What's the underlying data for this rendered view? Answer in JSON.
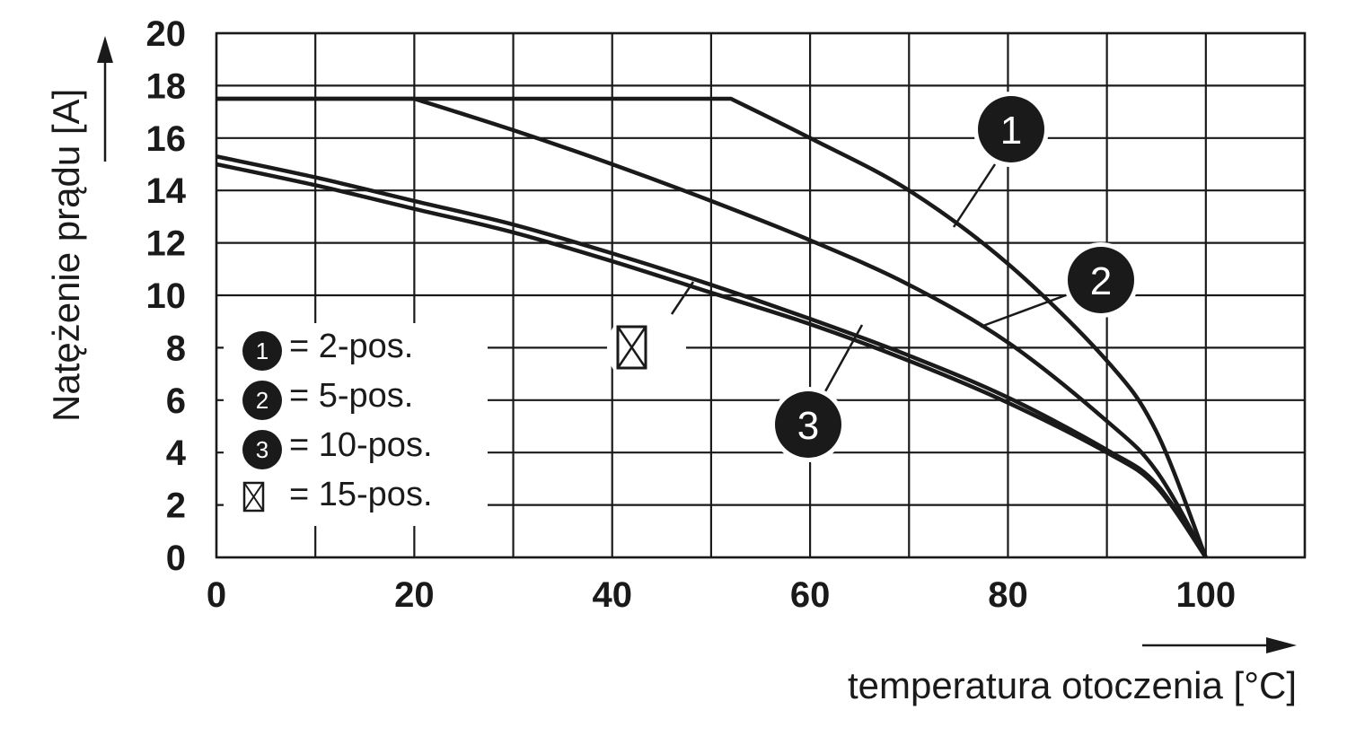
{
  "chart_data": {
    "type": "line",
    "xlabel": "temperatura otoczenia [°C]",
    "ylabel": "Natężenie prądu [A]",
    "xlim": [
      0,
      110
    ],
    "ylim": [
      0,
      20
    ],
    "x_ticks": [
      "0",
      "20",
      "40",
      "60",
      "80",
      "100"
    ],
    "y_ticks": [
      "0",
      "2",
      "4",
      "6",
      "8",
      "10",
      "12",
      "14",
      "16",
      "18",
      "20"
    ],
    "grid": true,
    "legend_position": "bottom-left",
    "series": [
      {
        "marker": "1",
        "x": [
          0,
          52,
          60,
          70,
          80,
          90,
          95,
          100
        ],
        "y": [
          17.5,
          17.5,
          16.0,
          14.0,
          11.2,
          7.5,
          4.8,
          0
        ]
      },
      {
        "marker": "2",
        "x": [
          0,
          20,
          30,
          40,
          50,
          60,
          70,
          80,
          90,
          95,
          100
        ],
        "y": [
          17.5,
          17.5,
          16.3,
          15.0,
          13.6,
          12.1,
          10.4,
          8.2,
          5.2,
          3.3,
          0
        ]
      },
      {
        "marker": "3",
        "x": [
          0,
          10,
          20,
          30,
          40,
          50,
          60,
          70,
          80,
          90,
          95,
          100
        ],
        "y": [
          15.3,
          14.5,
          13.6,
          12.7,
          11.6,
          10.4,
          9.1,
          7.7,
          6.1,
          4.1,
          2.8,
          0
        ]
      },
      {
        "marker": "15-pos",
        "x": [
          0,
          10,
          20,
          30,
          40,
          50,
          60,
          70,
          80,
          90,
          95,
          100
        ],
        "y": [
          15.0,
          14.2,
          13.3,
          12.4,
          11.3,
          10.1,
          8.9,
          7.5,
          5.9,
          4.0,
          2.7,
          0
        ]
      }
    ],
    "legend": [
      {
        "symbol": "1",
        "label": "= 2-pos."
      },
      {
        "symbol": "2",
        "label": "= 5-pos."
      },
      {
        "symbol": "3",
        "label": "= 10-pos."
      },
      {
        "symbol": "box-x",
        "label": "= 15-pos."
      }
    ],
    "callouts": [
      "1",
      "2",
      "3"
    ]
  }
}
